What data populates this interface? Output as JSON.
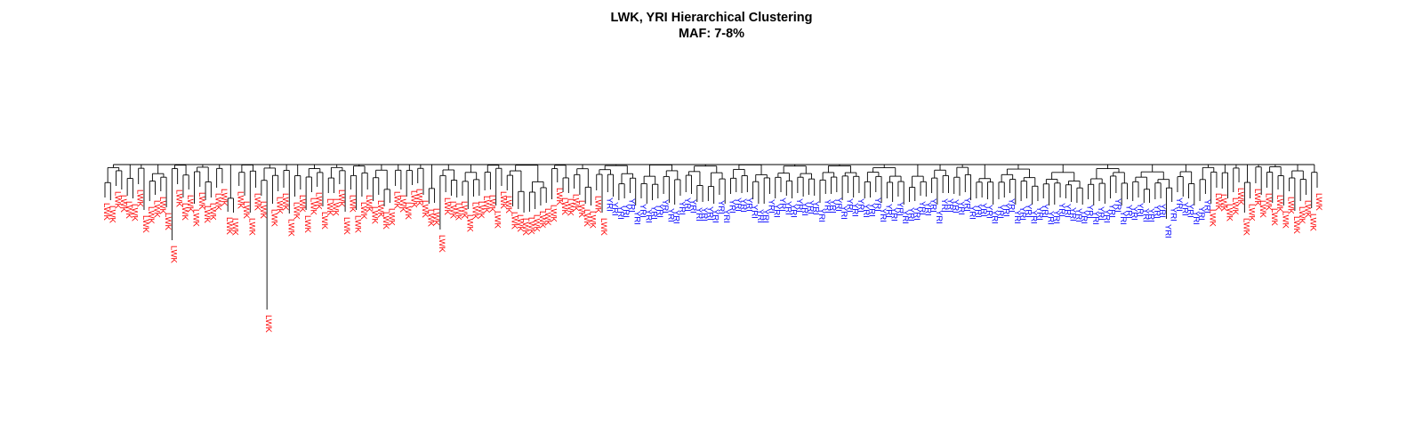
{
  "title": {
    "line1": "LWK, YRI Hierarchical Clustering",
    "line2": "MAF: 7-8%"
  },
  "colors": {
    "LWK": "#ff0000",
    "YRI": "#0000ff",
    "branch": "#000000",
    "background": "#ffffff"
  },
  "chart_data": {
    "type": "dendrogram",
    "leaf_labels": [
      "LWK",
      "YRI"
    ],
    "leaf_counts": {
      "LWK": 110,
      "YRI": 108
    },
    "leaf_order": [
      "LWK",
      "LWK",
      "LWK",
      "LWK",
      "LWK",
      "LWK",
      "LWK",
      "LWK",
      "LWK",
      "LWK",
      "LWK",
      "LWK",
      "LWK",
      "LWK",
      "LWK",
      "LWK",
      "LWK",
      "LWK",
      "LWK",
      "LWK",
      "LWK",
      "LWK",
      "LWK",
      "LWK",
      "LWK",
      "LWK",
      "LWK",
      "LWK",
      "LWK",
      "LWK",
      "LWK",
      "LWK",
      "LWK",
      "LWK",
      "LWK",
      "LWK",
      "LWK",
      "LWK",
      "LWK",
      "LWK",
      "LWK",
      "LWK",
      "LWK",
      "LWK",
      "LWK",
      "LWK",
      "LWK",
      "LWK",
      "LWK",
      "LWK",
      "LWK",
      "LWK",
      "LWK",
      "LWK",
      "LWK",
      "LWK",
      "LWK",
      "LWK",
      "LWK",
      "LWK",
      "LWK",
      "LWK",
      "LWK",
      "LWK",
      "LWK",
      "LWK",
      "LWK",
      "LWK",
      "LWK",
      "LWK",
      "LWK",
      "LWK",
      "LWK",
      "LWK",
      "LWK",
      "LWK",
      "LWK",
      "LWK",
      "LWK",
      "LWK",
      "LWK",
      "LWK",
      "LWK",
      "LWK",
      "LWK",
      "LWK",
      "LWK",
      "LWK",
      "LWK",
      "LWK",
      "YRI",
      "YRI",
      "YRI",
      "YRI",
      "YRI",
      "YRI",
      "YRI",
      "YRI",
      "YRI",
      "YRI",
      "YRI",
      "YRI",
      "YRI",
      "YRI",
      "YRI",
      "YRI",
      "YRI",
      "YRI",
      "YRI",
      "YRI",
      "YRI",
      "YRI",
      "YRI",
      "YRI",
      "YRI",
      "YRI",
      "YRI",
      "YRI",
      "YRI",
      "YRI",
      "YRI",
      "YRI",
      "YRI",
      "YRI",
      "YRI",
      "YRI",
      "YRI",
      "YRI",
      "YRI",
      "YRI",
      "YRI",
      "YRI",
      "YRI",
      "YRI",
      "YRI",
      "YRI",
      "YRI",
      "YRI",
      "YRI",
      "YRI",
      "YRI",
      "YRI",
      "YRI",
      "YRI",
      "YRI",
      "YRI",
      "YRI",
      "YRI",
      "YRI",
      "YRI",
      "YRI",
      "YRI",
      "YRI",
      "YRI",
      "YRI",
      "YRI",
      "YRI",
      "YRI",
      "YRI",
      "YRI",
      "YRI",
      "YRI",
      "YRI",
      "YRI",
      "YRI",
      "YRI",
      "YRI",
      "YRI",
      "YRI",
      "YRI",
      "YRI",
      "YRI",
      "YRI",
      "YRI",
      "YRI",
      "YRI",
      "YRI",
      "YRI",
      "YRI",
      "YRI",
      "YRI",
      "YRI",
      "YRI",
      "YRI",
      "YRI",
      "YRI",
      "YRI",
      "YRI",
      "YRI",
      "YRI",
      "YRI",
      "YRI",
      "YRI",
      "YRI",
      "YRI",
      "YRI",
      "YRI",
      "YRI",
      "LWK",
      "LWK",
      "LWK",
      "LWK",
      "LWK",
      "LWK",
      "LWK",
      "LWK",
      "LWK",
      "LWK",
      "LWK",
      "LWK",
      "LWK",
      "LWK",
      "LWK",
      "LWK",
      "LWK",
      "LWK",
      "LWK",
      "LWK"
    ],
    "outlier_leaves": 4,
    "axes": "none"
  }
}
